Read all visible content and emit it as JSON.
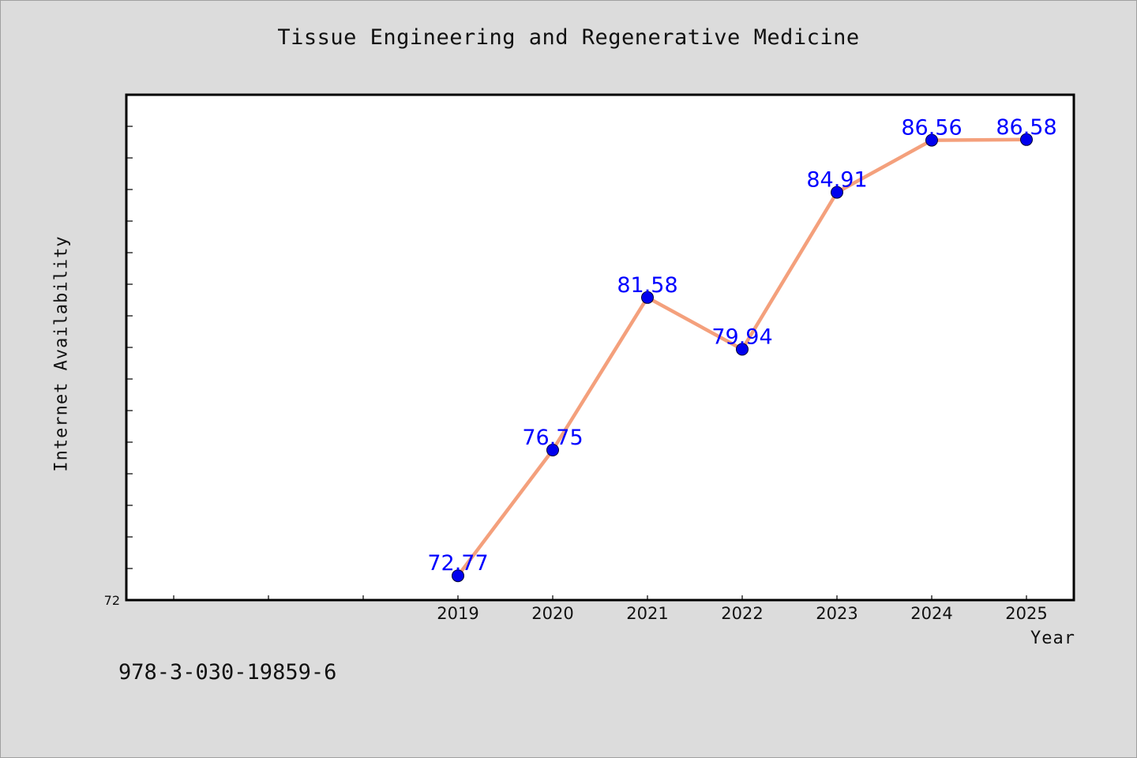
{
  "chart_data": {
    "type": "line",
    "title": "Tissue Engineering and Regenerative Medicine",
    "xlabel": "Year",
    "ylabel": "Internet Availability",
    "categories": [
      "2019",
      "2020",
      "2021",
      "2022",
      "2023",
      "2024",
      "2025"
    ],
    "values": [
      72.77,
      76.75,
      81.58,
      79.94,
      84.91,
      86.56,
      86.58
    ],
    "data_labels": [
      "72.77",
      "76.75",
      "81.58",
      "79.94",
      "84.91",
      "86.56",
      "86.58"
    ],
    "x_range": [
      2015.5,
      2025.5
    ],
    "ylim": [
      72,
      88
    ],
    "y_tick_labels": [
      "72"
    ],
    "grid": false,
    "line_color": "#f4a07c",
    "marker_color": "#0000ee",
    "label_color": "#0000ff"
  },
  "footer": {
    "isbn": "978-3-030-19859-6"
  }
}
